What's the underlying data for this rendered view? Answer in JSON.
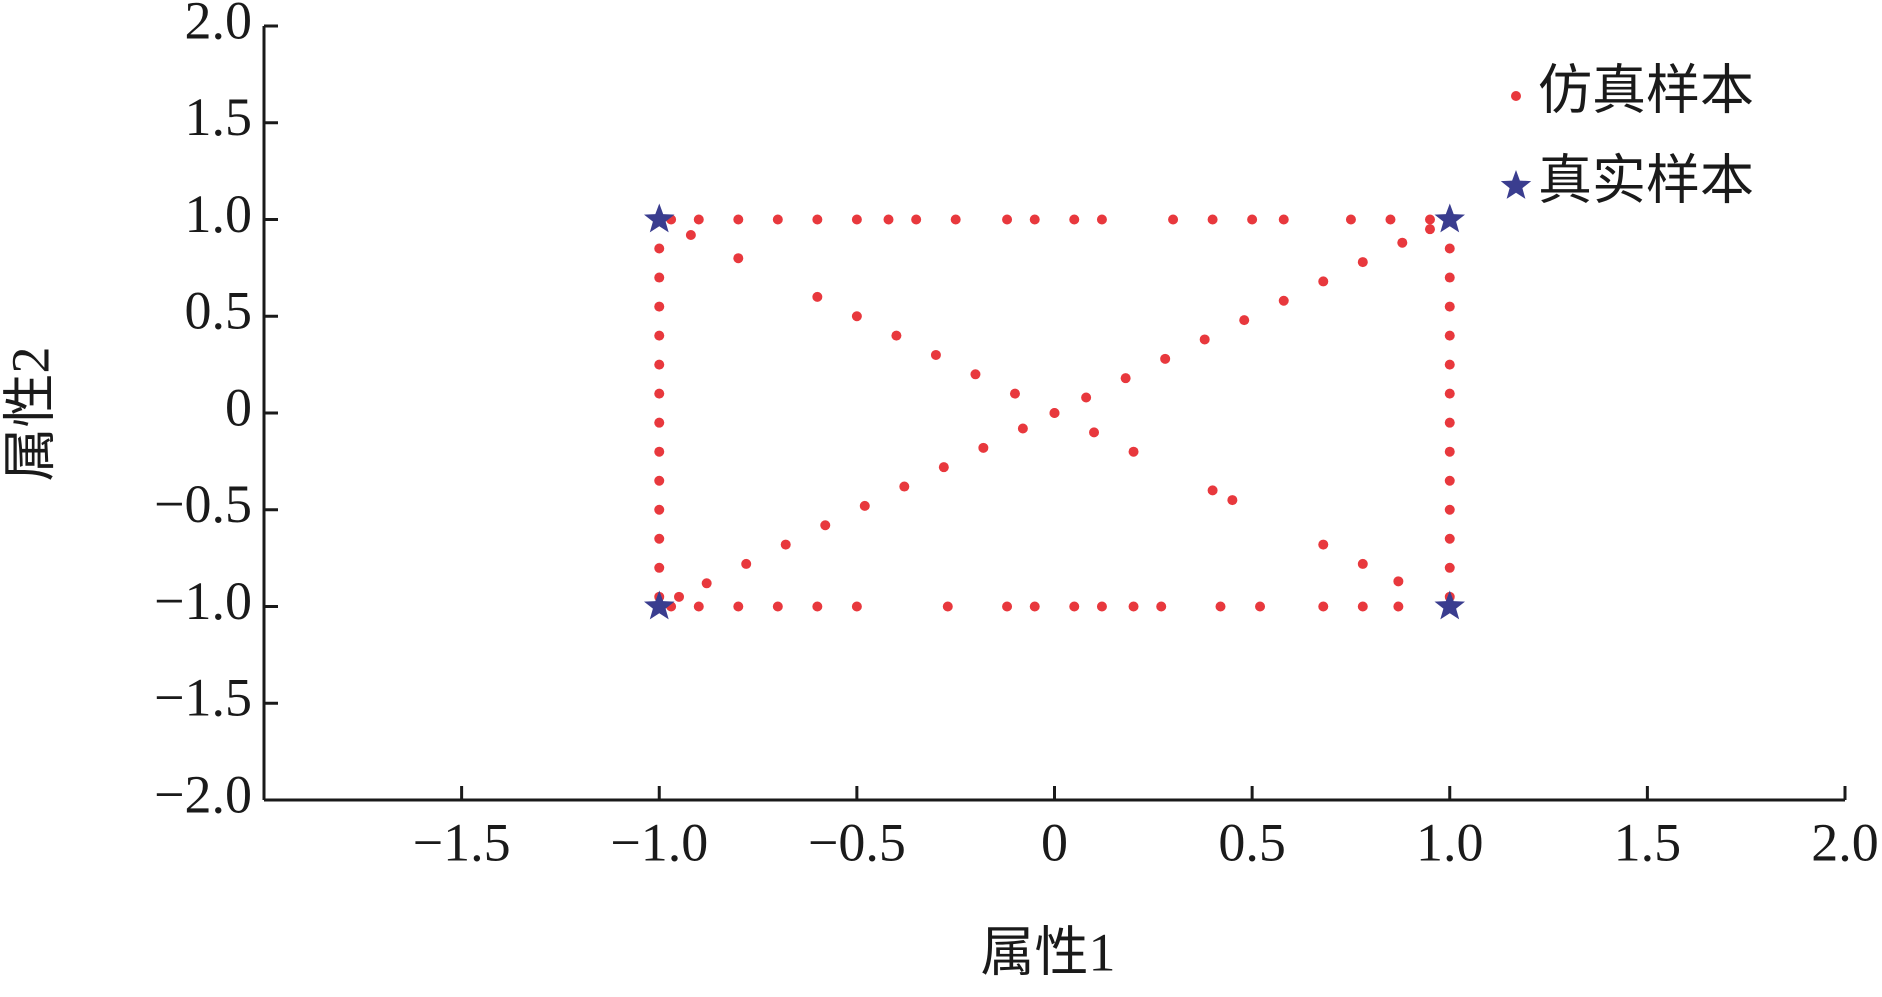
{
  "chart_data": {
    "type": "scatter",
    "x_label": "属性1",
    "y_label": "属性2",
    "xlim": [
      -2,
      2
    ],
    "xticks": [
      {
        "value": -1.5,
        "label": "−1.5"
      },
      {
        "value": -1.0,
        "label": "−1.0"
      },
      {
        "value": -0.5,
        "label": "−0.5"
      },
      0,
      0.5,
      {
        "value": 1.0,
        "label": "1.0"
      },
      1.5,
      {
        "value": 2.0,
        "label": "2.0"
      }
    ],
    "ylim": [
      -2,
      2
    ],
    "yticks": [
      {
        "value": -2.0,
        "label": "−2.0"
      },
      {
        "value": -1.5,
        "label": "−1.5"
      },
      {
        "value": -1.0,
        "label": "−1.0"
      },
      {
        "value": -0.5,
        "label": "−0.5"
      },
      0,
      0.5,
      {
        "value": 1.0,
        "label": "1.0"
      },
      1.5,
      {
        "value": 2.0,
        "label": "2.0"
      }
    ],
    "legend": "upper right",
    "series": [
      {
        "name": "仿真样本",
        "color": "#e8383d",
        "marker": "dot",
        "x": [
          -0.97,
          -0.9,
          -0.8,
          -0.7,
          -0.6,
          -0.5,
          -0.42,
          -0.35,
          -0.25,
          -0.12,
          -0.05,
          0.05,
          0.12,
          0.3,
          0.4,
          0.5,
          0.58,
          0.75,
          0.85,
          0.95,
          -0.97,
          -0.9,
          -0.8,
          -0.7,
          -0.6,
          -0.5,
          -0.27,
          -0.12,
          -0.05,
          0.05,
          0.12,
          0.2,
          0.27,
          0.42,
          0.52,
          0.68,
          0.78,
          0.87,
          -1,
          -1,
          -1,
          -1,
          -1,
          -1,
          -1,
          -1,
          -1,
          -1,
          -1,
          -1,
          -1,
          1,
          1,
          1,
          1,
          1,
          1,
          1,
          1,
          1,
          1,
          1,
          1,
          1,
          -0.95,
          -0.88,
          -0.78,
          -0.68,
          -0.58,
          -0.48,
          -0.38,
          -0.28,
          -0.18,
          -0.08,
          0,
          0.08,
          0.18,
          0.28,
          0.38,
          0.48,
          0.58,
          0.68,
          0.78,
          0.88,
          0.95,
          -0.92,
          -0.8,
          -0.6,
          -0.5,
          -0.4,
          -0.3,
          -0.2,
          -0.1,
          0,
          0.1,
          0.2,
          0.4,
          0.45,
          0.68,
          0.78,
          0.87
        ],
        "values": [
          1,
          1,
          1,
          1,
          1,
          1,
          1,
          1,
          1,
          1,
          1,
          1,
          1,
          1,
          1,
          1,
          1,
          1,
          1,
          1,
          -1,
          -1,
          -1,
          -1,
          -1,
          -1,
          -1,
          -1,
          -1,
          -1,
          -1,
          -1,
          -1,
          -1,
          -1,
          -1,
          -1,
          -1,
          -0.95,
          -0.8,
          -0.65,
          -0.5,
          -0.35,
          -0.2,
          -0.05,
          0.1,
          0.25,
          0.4,
          0.55,
          0.7,
          0.85,
          -0.95,
          -0.8,
          -0.65,
          -0.5,
          -0.35,
          -0.2,
          -0.05,
          0.1,
          0.25,
          0.4,
          0.55,
          0.7,
          0.85,
          -0.95,
          -0.88,
          -0.78,
          -0.68,
          -0.58,
          -0.48,
          -0.38,
          -0.28,
          -0.18,
          -0.08,
          0,
          0.08,
          0.18,
          0.28,
          0.38,
          0.48,
          0.58,
          0.68,
          0.78,
          0.88,
          0.95,
          0.92,
          0.8,
          0.6,
          0.5,
          0.4,
          0.3,
          0.2,
          0.1,
          0,
          -0.1,
          -0.2,
          -0.4,
          -0.45,
          -0.68,
          -0.78,
          -0.87
        ]
      },
      {
        "name": "真实样本",
        "color": "#3a3d8f",
        "marker": "star",
        "x": [
          -1,
          1,
          -1,
          1
        ],
        "values": [
          1,
          1,
          -1,
          -1
        ]
      }
    ]
  }
}
